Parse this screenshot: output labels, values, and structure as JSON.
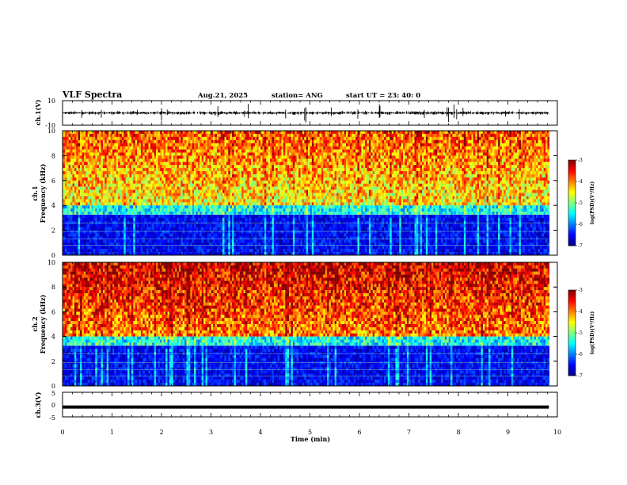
{
  "header": {
    "title": "VLF Spectra",
    "date": "Aug.21, 2025",
    "station": "station= ANG",
    "start": "start  UT  =    23: 40: 0"
  },
  "chart_data": [
    {
      "type": "line",
      "name": "ch1-waveform",
      "ylabel": "ch.1(V)",
      "ylim": [
        -10,
        10
      ],
      "yticks": [
        "10",
        "-10"
      ],
      "baseline": 0
    },
    {
      "type": "heatmap",
      "name": "ch1-spectrogram",
      "ylabel_line1": "ch.1",
      "ylabel_line2": "Frequency (kHz)",
      "ylim": [
        0,
        10
      ],
      "yticks": [
        "0",
        "2",
        "4",
        "6",
        "8",
        "10"
      ],
      "colorbar": {
        "label": "log(PSD)(V²/Hz)",
        "range": [
          -7,
          -3
        ],
        "ticks": [
          "-3",
          "-4",
          "-5",
          "-6",
          "-7"
        ]
      },
      "high_noise_band_khz": [
        4,
        10
      ],
      "low_band_khz": [
        0,
        4
      ]
    },
    {
      "type": "heatmap",
      "name": "ch2-spectrogram",
      "ylabel_line1": "ch.2",
      "ylabel_line2": "Frequency (kHz)",
      "ylim": [
        0,
        10
      ],
      "yticks": [
        "0",
        "2",
        "4",
        "6",
        "8",
        "10"
      ],
      "colorbar": {
        "label": "log(PSD)(V²/Hz)",
        "range": [
          -7,
          -3
        ],
        "ticks": [
          "-3",
          "-4",
          "-5",
          "-6",
          "-7"
        ]
      },
      "high_noise_band_khz": [
        4,
        10
      ],
      "low_band_khz": [
        0,
        4
      ]
    },
    {
      "type": "line",
      "name": "ch3-level",
      "ylabel": "ch.3(V)",
      "ylim": [
        -5,
        5
      ],
      "yticks": [
        "5",
        "0",
        "-5"
      ],
      "value": -1
    }
  ],
  "xaxis": {
    "label": "Time (min)",
    "xlim": [
      0,
      10
    ],
    "ticks": [
      "0",
      "1",
      "2",
      "3",
      "4",
      "5",
      "6",
      "7",
      "8",
      "9",
      "10"
    ],
    "data_end_min": 9.83
  }
}
